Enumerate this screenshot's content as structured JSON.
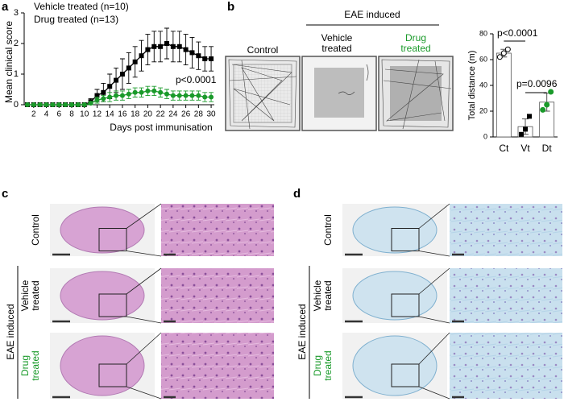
{
  "panel_labels": [
    "a",
    "b",
    "c",
    "d"
  ],
  "chart_data": [
    {
      "type": "line",
      "x": [
        1,
        2,
        3,
        4,
        5,
        6,
        7,
        8,
        9,
        10,
        11,
        12,
        13,
        14,
        15,
        16,
        17,
        18,
        19,
        20,
        21,
        22,
        23,
        24,
        25,
        26,
        27,
        28,
        29,
        30
      ],
      "series": [
        {
          "name": "Vehicle treated (n=10)",
          "color": "#000000",
          "marker": "square",
          "values": [
            0,
            0,
            0,
            0,
            0,
            0,
            0,
            0,
            0,
            0,
            0.1,
            0.3,
            0.4,
            0.6,
            0.8,
            1.0,
            1.2,
            1.4,
            1.6,
            1.8,
            1.9,
            1.9,
            2.0,
            1.9,
            1.9,
            1.8,
            1.7,
            1.6,
            1.5,
            1.5
          ],
          "errors": [
            0,
            0,
            0,
            0,
            0,
            0,
            0,
            0,
            0,
            0,
            0.1,
            0.2,
            0.3,
            0.4,
            0.4,
            0.5,
            0.5,
            0.5,
            0.5,
            0.5,
            0.5,
            0.5,
            0.5,
            0.5,
            0.5,
            0.5,
            0.5,
            0.45,
            0.4,
            0.4
          ]
        },
        {
          "name": "Drug treated (n=13)",
          "color": "#1a9a2a",
          "marker": "circle",
          "values": [
            0,
            0,
            0,
            0,
            0,
            0,
            0,
            0,
            0,
            0,
            0.05,
            0.15,
            0.2,
            0.25,
            0.3,
            0.3,
            0.35,
            0.4,
            0.4,
            0.45,
            0.45,
            0.4,
            0.35,
            0.3,
            0.3,
            0.3,
            0.3,
            0.3,
            0.25,
            0.25
          ],
          "errors": [
            0,
            0,
            0,
            0,
            0,
            0,
            0,
            0,
            0,
            0,
            0.05,
            0.1,
            0.1,
            0.15,
            0.15,
            0.15,
            0.15,
            0.15,
            0.15,
            0.15,
            0.15,
            0.15,
            0.15,
            0.15,
            0.15,
            0.15,
            0.15,
            0.15,
            0.15,
            0.15
          ]
        }
      ],
      "xlim": [
        0.5,
        30.5
      ],
      "xticks": [
        2,
        4,
        6,
        8,
        10,
        12,
        14,
        16,
        18,
        20,
        22,
        24,
        26,
        28,
        30
      ],
      "ylim": [
        0,
        3
      ],
      "yticks": [
        0,
        1,
        2,
        3
      ],
      "xlabel": "Days post immunisation",
      "ylabel": "Mean clinical score",
      "annotations": [
        "p<0.0001"
      ]
    },
    {
      "type": "bar",
      "categories": [
        "Ct",
        "Vt",
        "Dt"
      ],
      "values": [
        65,
        8,
        27
      ],
      "errors": [
        3,
        6,
        7
      ],
      "points": [
        [
          62,
          65,
          68
        ],
        [
          2,
          6,
          16
        ],
        [
          21,
          25,
          35
        ]
      ],
      "ylim": [
        0,
        80
      ],
      "yticks": [
        0,
        20,
        40,
        60,
        80
      ],
      "ylabel": "Total distance (m)",
      "annotations": [
        "p<0.0001",
        "p=0.0096"
      ]
    }
  ],
  "panel_b": {
    "header": "EAE induced",
    "labels": [
      [
        "Control"
      ],
      [
        "Vehicle",
        "treated"
      ],
      [
        "Drug",
        "treated"
      ]
    ]
  },
  "panel_c": {
    "rows": [
      [
        "Control"
      ],
      [
        "Vehicle",
        "treated"
      ],
      [
        "Drug",
        "treated"
      ]
    ],
    "group": "EAE induced"
  },
  "panel_d": {
    "rows": [
      [
        "Control"
      ],
      [
        "Vehicle",
        "treated"
      ],
      [
        "Drug",
        "treated"
      ]
    ],
    "group": "EAE induced"
  }
}
